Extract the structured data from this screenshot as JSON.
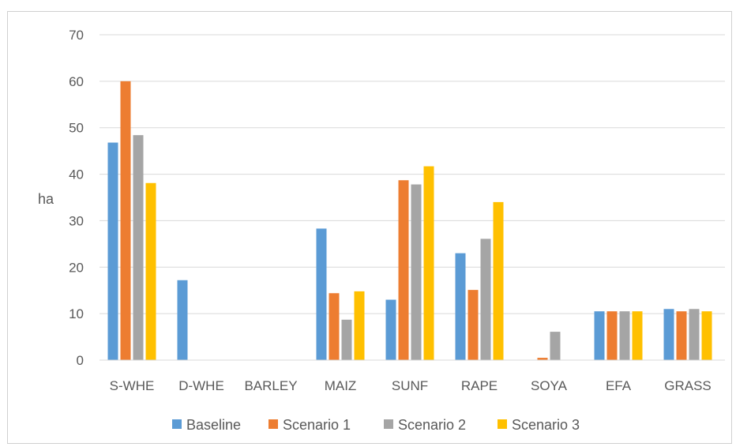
{
  "chart_data": {
    "type": "bar",
    "title": "",
    "xlabel": "",
    "ylabel": "ha",
    "ylim": [
      0,
      70
    ],
    "yticks": [
      0,
      10,
      20,
      30,
      40,
      50,
      60,
      70
    ],
    "grid": true,
    "legend_position": "bottom",
    "categories": [
      "S-WHE",
      "D-WHE",
      "BARLEY",
      "MAIZ",
      "SUNF",
      "RAPE",
      "SOYA",
      "EFA",
      "GRASS"
    ],
    "series": [
      {
        "name": "Baseline",
        "color": "#5B9BD5",
        "values": [
          46.8,
          17.2,
          0,
          28.3,
          13.0,
          23.0,
          0,
          10.5,
          11.0
        ]
      },
      {
        "name": "Scenario 1",
        "color": "#ED7D31",
        "values": [
          60.0,
          0,
          0,
          14.4,
          38.7,
          15.1,
          0.5,
          10.5,
          10.5
        ]
      },
      {
        "name": "Scenario 2",
        "color": "#A5A5A5",
        "values": [
          48.4,
          0,
          0,
          8.7,
          37.8,
          26.1,
          6.1,
          10.5,
          11.0
        ]
      },
      {
        "name": "Scenario 3",
        "color": "#FFC000",
        "values": [
          38.1,
          0,
          0,
          14.8,
          41.7,
          34.0,
          0,
          10.5,
          10.5
        ]
      }
    ]
  }
}
